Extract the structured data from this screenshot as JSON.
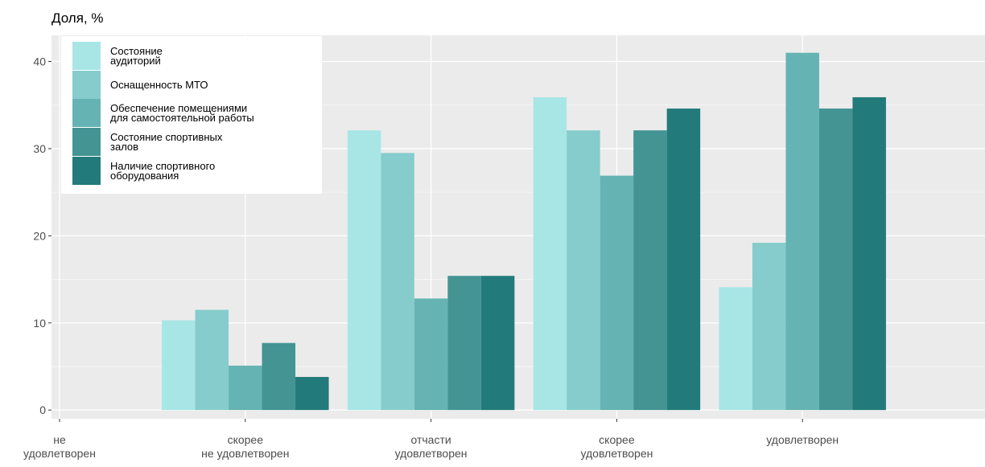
{
  "chart_data": {
    "type": "bar",
    "title": "",
    "ylabel": "Доля, %",
    "xlabel": "",
    "ylim": [
      -1,
      43
    ],
    "yticks": [
      0,
      10,
      20,
      30,
      40
    ],
    "grid": true,
    "legend_position": "top-left",
    "categories": [
      [
        "не",
        "удовлетворен"
      ],
      [
        "скорее",
        "не удовлетворен"
      ],
      [
        "отчасти",
        "удовлетворен"
      ],
      [
        "скорее",
        "удовлетворен"
      ],
      [
        "удовлетворен"
      ]
    ],
    "series": [
      {
        "name": [
          "Состояние",
          "аудиторий"
        ],
        "color": "#a8e6e6",
        "values": [
          0,
          10.3,
          32.1,
          35.9,
          14.1
        ]
      },
      {
        "name": [
          "Оснащенность МТО"
        ],
        "color": "#86cccc",
        "values": [
          0,
          11.5,
          29.5,
          32.1,
          19.2
        ]
      },
      {
        "name": [
          "Обеспечение помещениями",
          "для самостоятельной работы"
        ],
        "color": "#66b3b3",
        "values": [
          0,
          5.1,
          12.8,
          26.9,
          41.0
        ]
      },
      {
        "name": [
          "Состояние спортивных",
          "залов"
        ],
        "color": "#449494",
        "values": [
          0,
          7.7,
          15.4,
          32.1,
          34.6
        ]
      },
      {
        "name": [
          "Наличие спортивного",
          "оборудования"
        ],
        "color": "#237a7a",
        "values": [
          0,
          3.8,
          15.4,
          34.6,
          35.9
        ]
      }
    ]
  }
}
